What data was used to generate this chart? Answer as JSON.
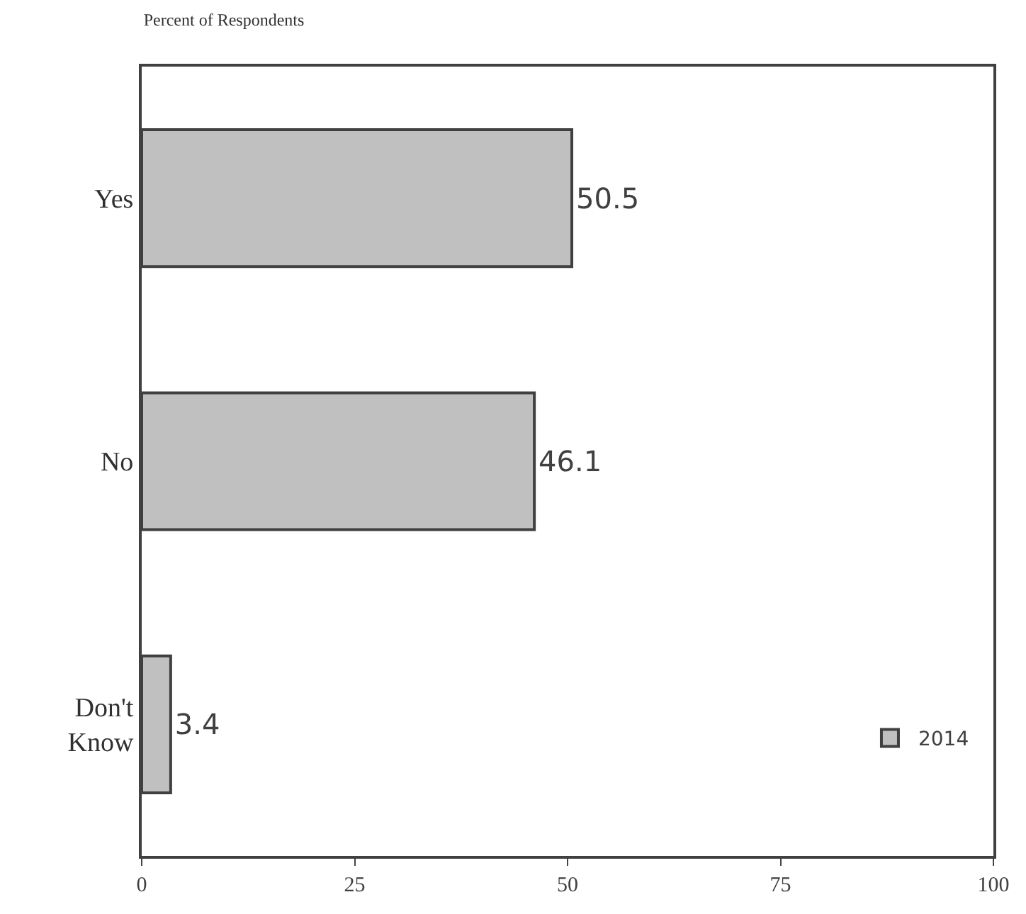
{
  "chart_data": {
    "type": "bar",
    "orientation": "horizontal",
    "title": "Percent of Respondents",
    "categories": [
      "Yes",
      "No",
      "Don't Know"
    ],
    "series": [
      {
        "name": "2014",
        "color": "#c0c0c0",
        "values": [
          50.5,
          46.1,
          3.4
        ]
      }
    ],
    "xlim": [
      0,
      100
    ],
    "xticks": [
      0,
      25,
      50,
      75,
      100
    ],
    "legend": "bottom right",
    "data_labels": true
  }
}
